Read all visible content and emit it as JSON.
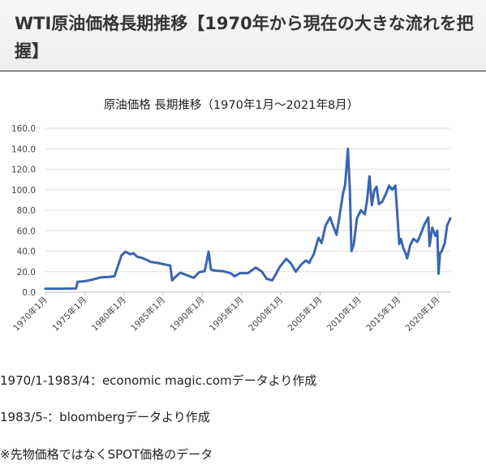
{
  "article": {
    "title": "WTI原油価格長期推移【1970年から現在の大きな流れを把握】"
  },
  "notes": {
    "source1": "1970/1-1983/4：economic magic.comデータより作成",
    "source2": "1983/5-：bloombergデータより作成",
    "remark": "※先物価格ではなくSPOT価格のデータ"
  },
  "chart_data": {
    "type": "line",
    "title": "原油価格 長期推移（1970年1月～2021年8月）",
    "xlabel": "",
    "ylabel": "",
    "ylim": [
      0,
      160
    ],
    "yticks": [
      "0.0",
      "20.0",
      "40.0",
      "60.0",
      "80.0",
      "100.0",
      "120.0",
      "140.0",
      "160.0"
    ],
    "xticks": [
      "1970年1月",
      "1975年1月",
      "1980年1月",
      "1985年1月",
      "1990年1月",
      "1995年1月",
      "2000年1月",
      "2005年1月",
      "2010年1月",
      "2015年1月",
      "2020年1月"
    ],
    "xlim": [
      1970,
      2021.6
    ],
    "grid": true,
    "line_color": "#3a66b0",
    "series": [
      {
        "x": [
          1970,
          1972,
          1973.9,
          1974.1,
          1975,
          1976,
          1977,
          1978,
          1978.8,
          1979.3,
          1979.7,
          1980.2,
          1980.8,
          1981.2,
          1981.7,
          1982.3,
          1982.9,
          1983.4,
          1984.3,
          1985.2,
          1985.9,
          1986.15,
          1986.5,
          1987.2,
          1988.2,
          1988.9,
          1989.6,
          1990.3,
          1990.8,
          1991.1,
          1991.6,
          1992.6,
          1993.6,
          1994.1,
          1994.8,
          1995.8,
          1996.8,
          1997.6,
          1998.2,
          1998.9,
          1999.4,
          1999.9,
          2000.7,
          2001.3,
          2001.9,
          2002.6,
          2003.2,
          2003.6,
          2004.2,
          2004.8,
          2005.2,
          2005.7,
          2006.3,
          2006.6,
          2007.1,
          2007.5,
          2007.9,
          2008.2,
          2008.55,
          2008.8,
          2009.0,
          2009.3,
          2009.7,
          2010.2,
          2010.7,
          2011.0,
          2011.3,
          2011.6,
          2011.9,
          2012.2,
          2012.5,
          2012.9,
          2013.4,
          2013.8,
          2014.2,
          2014.6,
          2014.9,
          2015.1,
          2015.3,
          2015.6,
          2015.9,
          2016.1,
          2016.5,
          2016.9,
          2017.4,
          2017.9,
          2018.3,
          2018.8,
          2018.95,
          2019.3,
          2019.7,
          2019.95,
          2020.1,
          2020.3,
          2020.5,
          2020.9,
          2021.2,
          2021.6
        ],
        "y": [
          3.3,
          3.4,
          3.6,
          10.1,
          10.7,
          12.2,
          14.3,
          14.9,
          15.5,
          27,
          36,
          39.5,
          37,
          38,
          34.5,
          33.5,
          31.5,
          29.5,
          28.5,
          27,
          26,
          11.5,
          14.5,
          19,
          16,
          14,
          19.5,
          20.5,
          39.5,
          22,
          21,
          20.5,
          18.5,
          15.5,
          18.5,
          18.5,
          24,
          20,
          13,
          11.5,
          18,
          25,
          32.5,
          28,
          20,
          27,
          31,
          28.5,
          37,
          53,
          48,
          65,
          73,
          66,
          56,
          75,
          95,
          105,
          140,
          100,
          40,
          47,
          72,
          80,
          76,
          90,
          113,
          85,
          99,
          103,
          86,
          88,
          96,
          104,
          100,
          104,
          70,
          47,
          52,
          43,
          38,
          33,
          46,
          52,
          49,
          58,
          66,
          73,
          45,
          63,
          55,
          60,
          18,
          38,
          40,
          48,
          65,
          72
        ]
      }
    ]
  }
}
